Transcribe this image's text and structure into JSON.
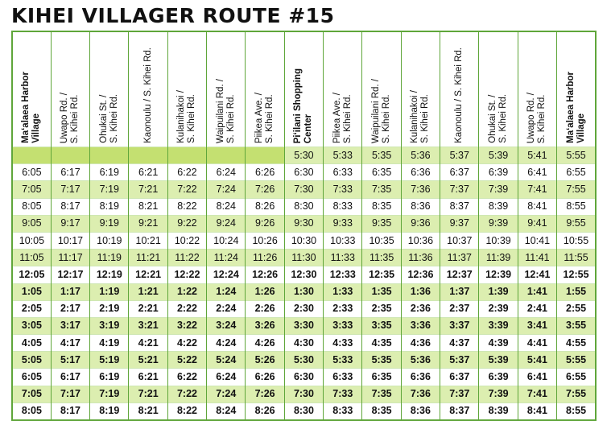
{
  "title": "KIHEI VILLAGER ROUTE #15",
  "stops": [
    {
      "lines": [
        "Ma‘alaea Harbor",
        "Village"
      ],
      "bold": true
    },
    {
      "lines": [
        "Uwapo Rd. /",
        "S. Kihei Rd."
      ],
      "bold": false
    },
    {
      "lines": [
        "Ohukai St. /",
        "S. Kihei Rd."
      ],
      "bold": false
    },
    {
      "lines": [
        "Kaonoulu / S. Kihei Rd."
      ],
      "bold": false
    },
    {
      "lines": [
        "Kulanihakoi /",
        "S. Kihei Rd."
      ],
      "bold": false
    },
    {
      "lines": [
        "Waipuilani Rd. /",
        "S. Kihei Rd."
      ],
      "bold": false
    },
    {
      "lines": [
        "Piikea Ave. /",
        "S. Kihei Rd."
      ],
      "bold": false
    },
    {
      "lines": [
        "Pi‘ilani Shopping",
        "Center"
      ],
      "bold": true
    },
    {
      "lines": [
        "Piikea Ave. /",
        "S. Kihei Rd."
      ],
      "bold": false
    },
    {
      "lines": [
        "Waipuilani Rd. /",
        "S. Kihei Rd."
      ],
      "bold": false
    },
    {
      "lines": [
        "Kulanihakoi /",
        "S. Kihei Rd."
      ],
      "bold": false
    },
    {
      "lines": [
        "Kaonoulu / S. Kihei Rd."
      ],
      "bold": false
    },
    {
      "lines": [
        "Ohukai St. /",
        "S. Kihei Rd."
      ],
      "bold": false
    },
    {
      "lines": [
        "Uwapo Rd. /",
        "S. Kihei Rd."
      ],
      "bold": false
    },
    {
      "lines": [
        "Ma‘alaea Harbor",
        "Village"
      ],
      "bold": true
    }
  ],
  "rows": [
    {
      "times": [
        "",
        "",
        "",
        "",
        "",
        "",
        "",
        "5:30",
        "5:33",
        "5:35",
        "5:36",
        "5:37",
        "5:39",
        "5:41",
        "5:55"
      ],
      "pm": false
    },
    {
      "times": [
        "6:05",
        "6:17",
        "6:19",
        "6:21",
        "6:22",
        "6:24",
        "6:26",
        "6:30",
        "6:33",
        "6:35",
        "6:36",
        "6:37",
        "6:39",
        "6:41",
        "6:55"
      ],
      "pm": false
    },
    {
      "times": [
        "7:05",
        "7:17",
        "7:19",
        "7:21",
        "7:22",
        "7:24",
        "7:26",
        "7:30",
        "7:33",
        "7:35",
        "7:36",
        "7:37",
        "7:39",
        "7:41",
        "7:55"
      ],
      "pm": false
    },
    {
      "times": [
        "8:05",
        "8:17",
        "8:19",
        "8:21",
        "8:22",
        "8:24",
        "8:26",
        "8:30",
        "8:33",
        "8:35",
        "8:36",
        "8:37",
        "8:39",
        "8:41",
        "8:55"
      ],
      "pm": false
    },
    {
      "times": [
        "9:05",
        "9:17",
        "9:19",
        "9:21",
        "9:22",
        "9:24",
        "9:26",
        "9:30",
        "9:33",
        "9:35",
        "9:36",
        "9:37",
        "9:39",
        "9:41",
        "9:55"
      ],
      "pm": false
    },
    {
      "times": [
        "10:05",
        "10:17",
        "10:19",
        "10:21",
        "10:22",
        "10:24",
        "10:26",
        "10:30",
        "10:33",
        "10:35",
        "10:36",
        "10:37",
        "10:39",
        "10:41",
        "10:55"
      ],
      "pm": false
    },
    {
      "times": [
        "11:05",
        "11:17",
        "11:19",
        "11:21",
        "11:22",
        "11:24",
        "11:26",
        "11:30",
        "11:33",
        "11:35",
        "11:36",
        "11:37",
        "11:39",
        "11:41",
        "11:55"
      ],
      "pm": false
    },
    {
      "times": [
        "12:05",
        "12:17",
        "12:19",
        "12:21",
        "12:22",
        "12:24",
        "12:26",
        "12:30",
        "12:33",
        "12:35",
        "12:36",
        "12:37",
        "12:39",
        "12:41",
        "12:55"
      ],
      "pm": true
    },
    {
      "times": [
        "1:05",
        "1:17",
        "1:19",
        "1:21",
        "1:22",
        "1:24",
        "1:26",
        "1:30",
        "1:33",
        "1:35",
        "1:36",
        "1:37",
        "1:39",
        "1:41",
        "1:55"
      ],
      "pm": true
    },
    {
      "times": [
        "2:05",
        "2:17",
        "2:19",
        "2:21",
        "2:22",
        "2:24",
        "2:26",
        "2:30",
        "2:33",
        "2:35",
        "2:36",
        "2:37",
        "2:39",
        "2:41",
        "2:55"
      ],
      "pm": true
    },
    {
      "times": [
        "3:05",
        "3:17",
        "3:19",
        "3:21",
        "3:22",
        "3:24",
        "3:26",
        "3:30",
        "3:33",
        "3:35",
        "3:36",
        "3:37",
        "3:39",
        "3:41",
        "3:55"
      ],
      "pm": true
    },
    {
      "times": [
        "4:05",
        "4:17",
        "4:19",
        "4:21",
        "4:22",
        "4:24",
        "4:26",
        "4:30",
        "4:33",
        "4:35",
        "4:36",
        "4:37",
        "4:39",
        "4:41",
        "4:55"
      ],
      "pm": true
    },
    {
      "times": [
        "5:05",
        "5:17",
        "5:19",
        "5:21",
        "5:22",
        "5:24",
        "5:26",
        "5:30",
        "5:33",
        "5:35",
        "5:36",
        "5:37",
        "5:39",
        "5:41",
        "5:55"
      ],
      "pm": true
    },
    {
      "times": [
        "6:05",
        "6:17",
        "6:19",
        "6:21",
        "6:22",
        "6:24",
        "6:26",
        "6:30",
        "6:33",
        "6:35",
        "6:36",
        "6:37",
        "6:39",
        "6:41",
        "6:55"
      ],
      "pm": true
    },
    {
      "times": [
        "7:05",
        "7:17",
        "7:19",
        "7:21",
        "7:22",
        "7:24",
        "7:26",
        "7:30",
        "7:33",
        "7:35",
        "7:36",
        "7:37",
        "7:39",
        "7:41",
        "7:55"
      ],
      "pm": true
    },
    {
      "times": [
        "8:05",
        "8:17",
        "8:19",
        "8:21",
        "8:22",
        "8:24",
        "8:26",
        "8:30",
        "8:33",
        "8:35",
        "8:36",
        "8:37",
        "8:39",
        "8:41",
        "8:55"
      ],
      "pm": true
    }
  ],
  "colors": {
    "border": "#5fa63a",
    "row_alt": "#dceeb0",
    "blank_cell": "#c4e071"
  }
}
